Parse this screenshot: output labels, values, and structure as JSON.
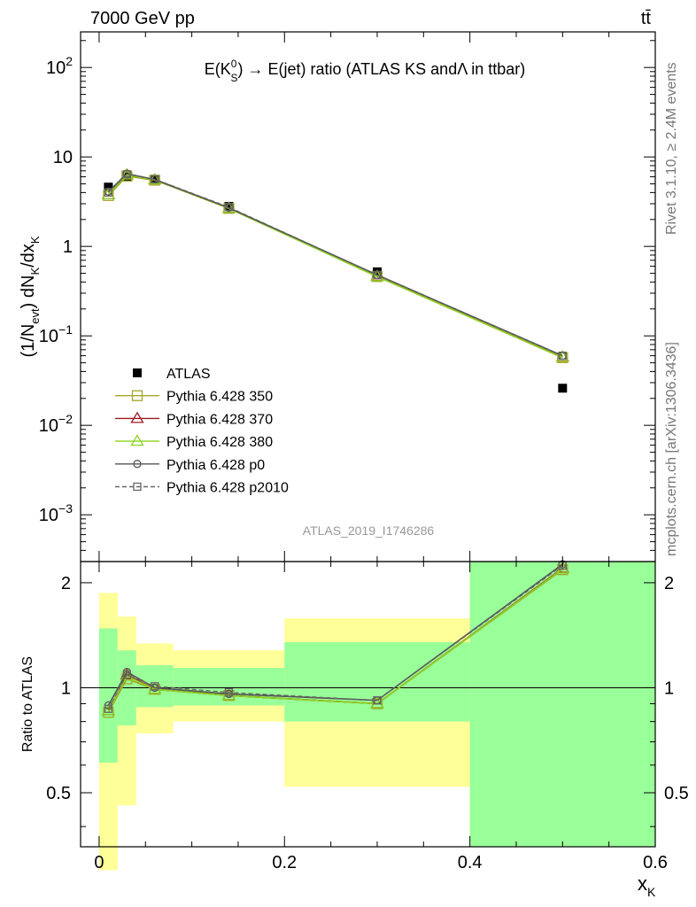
{
  "header": {
    "left": "7000 GeV pp",
    "right": "tt̄"
  },
  "side_labels": {
    "rivet": "Rivet 3.1.10, ≥ 2.4M events",
    "mcplots": "mcplots.cern.ch [arXiv:1306.3436]"
  },
  "watermark": "ATLAS_2019_I1746286",
  "chart_data": [
    {
      "type": "scatter",
      "title_parts": {
        "pre": "E(K",
        "sup": "0",
        "sub": "S",
        "post": ") → E(jet) ratio (ATLAS KS andΛ in ttbar)"
      },
      "ylabel": "(1/N_evt) dN_K/dx_K",
      "yscale": "log",
      "ylim": [
        0.0003,
        250
      ],
      "xlim": [
        -0.02,
        0.6
      ],
      "ytick_labels": [
        "10^-3",
        "10^-2",
        "10^-1",
        "1",
        "10",
        "10^2"
      ],
      "legend_position": "lower-left",
      "x": [
        0.01,
        0.03,
        0.06,
        0.14,
        0.3,
        0.5
      ],
      "series": [
        {
          "name": "ATLAS",
          "color": "#000000",
          "marker": "filled-square",
          "values": [
            4.6,
            6.0,
            5.6,
            2.8,
            0.52,
            0.026
          ]
        },
        {
          "name": "Pythia 6.428 350",
          "color": "#a5a52a",
          "marker": "open-square",
          "values": [
            3.7,
            6.1,
            5.5,
            2.66,
            0.46,
            0.057
          ]
        },
        {
          "name": "Pythia 6.428 370",
          "color": "#9b1b23",
          "marker": "open-triangle",
          "values": [
            3.8,
            6.3,
            5.55,
            2.67,
            0.465,
            0.058
          ]
        },
        {
          "name": "Pythia 6.428 380",
          "color": "#8cd41f",
          "marker": "open-triangle",
          "values": [
            3.8,
            6.3,
            5.55,
            2.66,
            0.46,
            0.0575
          ]
        },
        {
          "name": "Pythia 6.428 p0",
          "color": "#555555",
          "marker": "open-circle",
          "values": [
            4.1,
            6.5,
            5.6,
            2.7,
            0.48,
            0.06
          ]
        },
        {
          "name": "Pythia 6.428 p2010",
          "color": "#666666",
          "marker": "open-square-dashed",
          "values": [
            4.0,
            6.4,
            5.65,
            2.75,
            0.48,
            0.06
          ]
        }
      ]
    },
    {
      "type": "line",
      "ylabel": "Ratio to ATLAS",
      "xlabel": "x_K",
      "yscale": "log",
      "ylim": [
        0.35,
        2.3
      ],
      "xlim": [
        -0.02,
        0.6
      ],
      "xtick_labels": [
        "0",
        "0.2",
        "0.4",
        "0.6"
      ],
      "ytick_labels": [
        "0.5",
        "1",
        "2"
      ],
      "bands": [
        {
          "x0": 0.0,
          "x1": 0.02,
          "yellow": [
            0.3,
            1.87
          ],
          "green": [
            0.61,
            1.48
          ]
        },
        {
          "x0": 0.02,
          "x1": 0.04,
          "yellow": [
            0.46,
            1.6
          ],
          "green": [
            0.78,
            1.28
          ]
        },
        {
          "x0": 0.04,
          "x1": 0.08,
          "yellow": [
            0.74,
            1.34
          ],
          "green": [
            0.88,
            1.16
          ]
        },
        {
          "x0": 0.08,
          "x1": 0.2,
          "yellow": [
            0.8,
            1.28
          ],
          "green": [
            0.89,
            1.14
          ]
        },
        {
          "x0": 0.2,
          "x1": 0.4,
          "yellow": [
            0.52,
            1.58
          ],
          "green": [
            0.8,
            1.35
          ]
        },
        {
          "x0": 0.4,
          "x1": 0.6,
          "yellow": [
            0.35,
            2.3
          ],
          "green": [
            0.35,
            2.3
          ]
        }
      ],
      "x": [
        0.01,
        0.03,
        0.06,
        0.14,
        0.3,
        0.5
      ],
      "series": [
        {
          "name": "Pythia 6.428 350",
          "color": "#a5a52a",
          "marker": "open-square",
          "values": [
            0.85,
            1.06,
            0.99,
            0.95,
            0.9,
            2.18
          ]
        },
        {
          "name": "Pythia 6.428 370",
          "color": "#9b1b23",
          "marker": "open-triangle",
          "values": [
            0.86,
            1.09,
            0.99,
            0.95,
            0.9,
            2.2
          ]
        },
        {
          "name": "Pythia 6.428 380",
          "color": "#8cd41f",
          "marker": "open-triangle",
          "values": [
            0.86,
            1.08,
            0.99,
            0.95,
            0.9,
            2.19
          ]
        },
        {
          "name": "Pythia 6.428 p0",
          "color": "#555555",
          "marker": "open-circle",
          "values": [
            0.89,
            1.11,
            1.0,
            0.96,
            0.92,
            2.26
          ]
        },
        {
          "name": "Pythia 6.428 p2010",
          "color": "#666666",
          "marker": "open-square-dashed",
          "values": [
            0.87,
            1.09,
            1.01,
            0.97,
            0.92,
            2.24
          ]
        }
      ]
    }
  ]
}
